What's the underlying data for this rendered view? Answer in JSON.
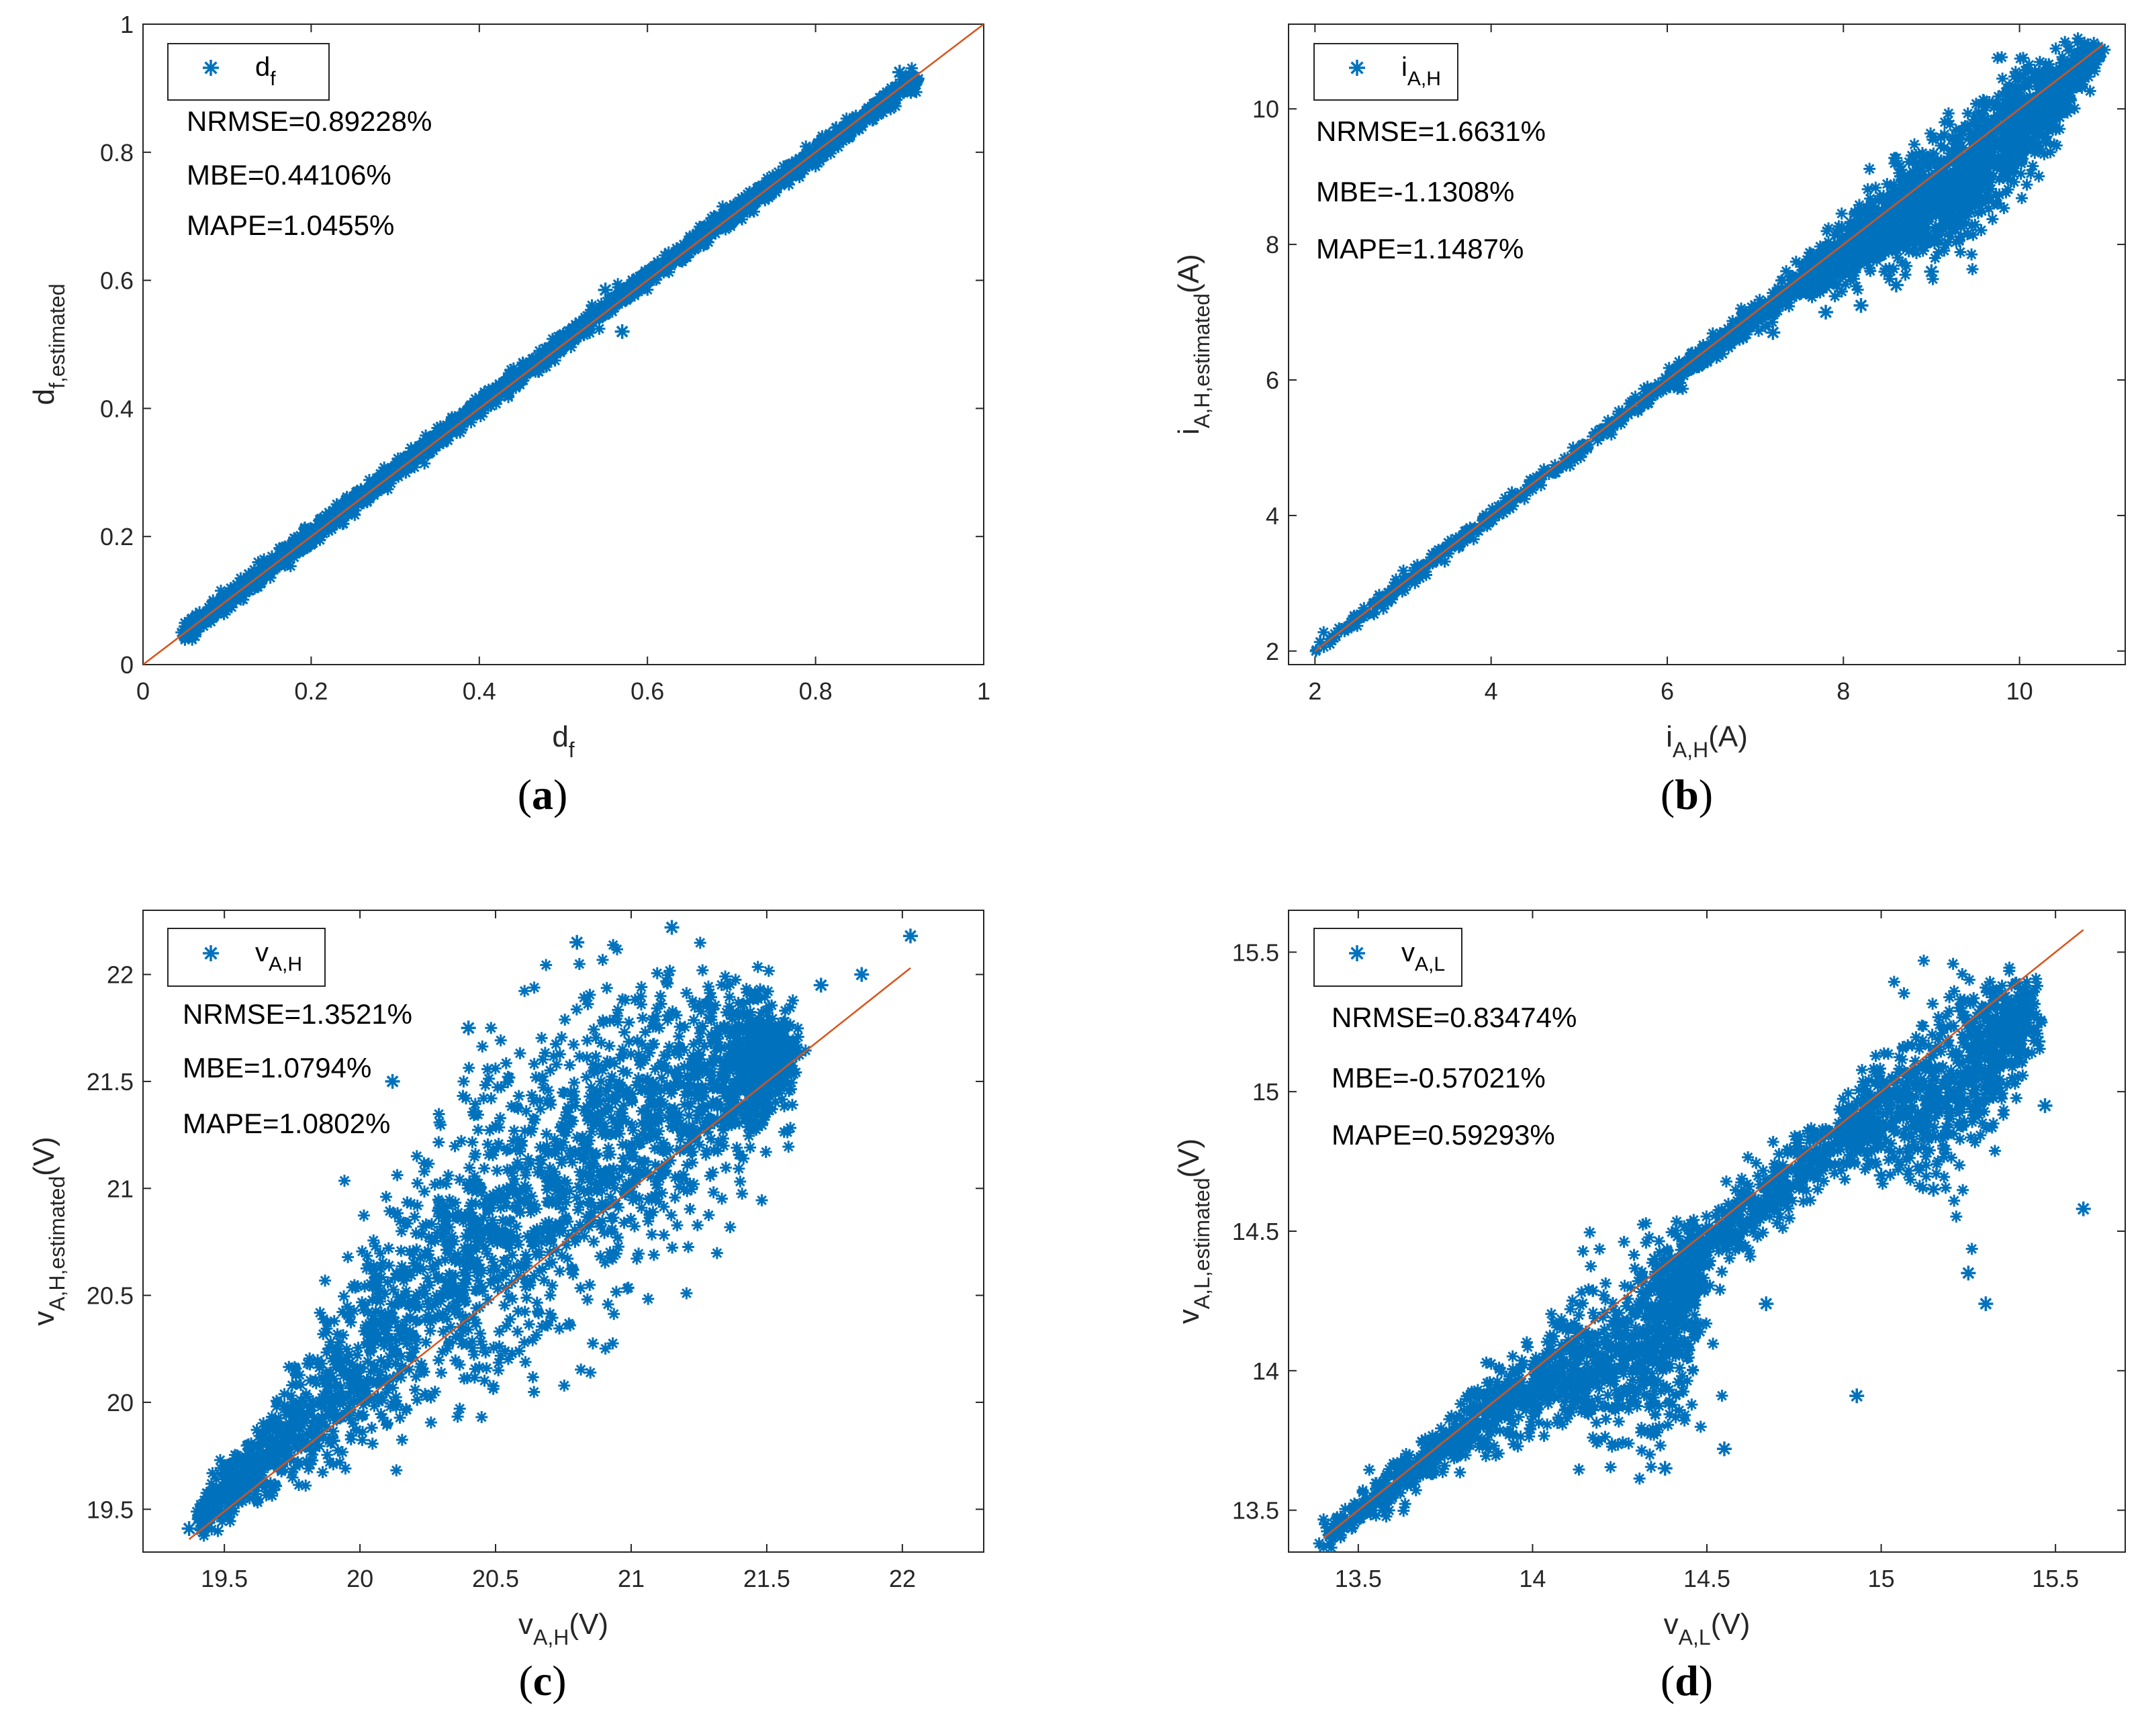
{
  "figure": {
    "accent_series_color": "#0072BD",
    "reference_line_color": "#D95319",
    "marker_glyph": "asterisk"
  },
  "chart_data": [
    {
      "type": "scatter",
      "id": "a",
      "panel_label": "a",
      "legend_label": {
        "main": "d",
        "sub": "f"
      },
      "xlabel": {
        "main": "d",
        "sub": "f",
        "suffix": ""
      },
      "ylabel": {
        "main": "d",
        "sub": "f,estimated",
        "suffix": ""
      },
      "xlim": [
        0,
        1
      ],
      "ylim": [
        0,
        1
      ],
      "xticks": [
        0,
        0.2,
        0.4,
        0.6,
        0.8,
        1
      ],
      "xtick_labels": [
        "0",
        "0.2",
        "0.4",
        "0.6",
        "0.8",
        "1"
      ],
      "yticks": [
        0,
        0.2,
        0.4,
        0.6,
        0.8,
        1
      ],
      "ytick_labels": [
        "0",
        "0.2",
        "0.4",
        "0.6",
        "0.8",
        "1"
      ],
      "stats": {
        "nrmse": "NRMSE=0.89228%",
        "mbe": "MBE=0.44106%",
        "mape": "MAPE=1.0455%"
      },
      "reference_line": {
        "x": [
          0,
          1
        ],
        "y": [
          0,
          1
        ]
      },
      "scatter_band": [
        {
          "x": 0.05,
          "y": 0.05,
          "spread": 0.008
        },
        {
          "x": 0.3,
          "y": 0.303,
          "spread": 0.007
        },
        {
          "x": 0.6,
          "y": 0.605,
          "spread": 0.007
        },
        {
          "x": 0.92,
          "y": 0.915,
          "spread": 0.008
        }
      ],
      "outliers": [
        [
          0.57,
          0.52
        ],
        [
          0.7,
          0.71
        ],
        [
          0.55,
          0.585
        ],
        [
          0.9,
          0.925
        ]
      ]
    },
    {
      "type": "scatter",
      "id": "b",
      "panel_label": "b",
      "legend_label": {
        "main": "i",
        "sub": "A,H"
      },
      "xlabel": {
        "main": "i",
        "sub": "A,H",
        "suffix": "(A)"
      },
      "ylabel": {
        "main": "i",
        "sub": "A,H,estimated",
        "suffix": "(A)"
      },
      "xlim": [
        1.7,
        11.2
      ],
      "ylim": [
        1.8,
        11.25
      ],
      "xticks": [
        2,
        4,
        6,
        8,
        10
      ],
      "xtick_labels": [
        "2",
        "4",
        "6",
        "8",
        "10"
      ],
      "yticks": [
        2,
        4,
        6,
        8,
        10
      ],
      "ytick_labels": [
        "2",
        "4",
        "6",
        "8",
        "10"
      ],
      "stats": {
        "nrmse": "NRMSE=1.6631%",
        "mbe": "MBE=-1.1308%",
        "mape": "MAPE=1.1487%"
      },
      "reference_line": {
        "x": [
          2,
          10.95
        ],
        "y": [
          2,
          10.95
        ]
      },
      "scatter_band": [
        {
          "x": 2.0,
          "y": 2.0,
          "spread": 0.05
        },
        {
          "x": 6.0,
          "y": 5.97,
          "spread": 0.06
        },
        {
          "x": 7.5,
          "y": 7.4,
          "spread": 0.12
        },
        {
          "x": 8.5,
          "y": 8.3,
          "spread": 0.3
        },
        {
          "x": 9.3,
          "y": 8.9,
          "spread": 0.45
        },
        {
          "x": 10.0,
          "y": 9.8,
          "spread": 0.4
        },
        {
          "x": 10.9,
          "y": 10.85,
          "spread": 0.08
        }
      ],
      "outliers": [
        [
          8.2,
          7.1
        ],
        [
          8.6,
          7.4
        ],
        [
          9.0,
          7.6
        ],
        [
          8.9,
          9.3
        ],
        [
          9.5,
          8.6
        ],
        [
          10.3,
          9.5
        ],
        [
          7.8,
          7.0
        ],
        [
          7.2,
          6.7
        ]
      ]
    },
    {
      "type": "scatter",
      "id": "c",
      "panel_label": "c",
      "legend_label": {
        "main": "v",
        "sub": "A,H"
      },
      "xlabel": {
        "main": "v",
        "sub": "A,H",
        "suffix": "(V)"
      },
      "ylabel": {
        "main": "v",
        "sub": "A,H,estimated",
        "suffix": "(V)"
      },
      "xlim": [
        19.2,
        22.3
      ],
      "ylim": [
        19.3,
        22.3
      ],
      "xticks": [
        19.5,
        20,
        20.5,
        21,
        21.5,
        22
      ],
      "xtick_labels": [
        "19.5",
        "20",
        "20.5",
        "21",
        "21.5",
        "22"
      ],
      "yticks": [
        19.5,
        20,
        20.5,
        21,
        21.5,
        22
      ],
      "ytick_labels": [
        "19.5",
        "20",
        "20.5",
        "21",
        "21.5",
        "22"
      ],
      "stats": {
        "nrmse": "NRMSE=1.3521%",
        "mbe": "MBE=1.0794%",
        "mape": "MAPE=1.0802%"
      },
      "reference_line": {
        "x": [
          19.37,
          22.03
        ],
        "y": [
          19.36,
          22.03
        ]
      },
      "scatter_band": [
        {
          "x": 19.4,
          "y": 19.45,
          "spread": 0.04
        },
        {
          "x": 19.8,
          "y": 19.9,
          "spread": 0.12
        },
        {
          "x": 20.2,
          "y": 20.45,
          "spread": 0.28
        },
        {
          "x": 20.6,
          "y": 20.95,
          "spread": 0.38
        },
        {
          "x": 21.0,
          "y": 21.3,
          "spread": 0.35
        },
        {
          "x": 21.4,
          "y": 21.55,
          "spread": 0.2
        },
        {
          "x": 21.55,
          "y": 21.6,
          "spread": 0.1
        }
      ],
      "outliers": [
        [
          19.37,
          19.41
        ],
        [
          22.03,
          22.18
        ],
        [
          21.85,
          22.0
        ],
        [
          20.8,
          22.15
        ],
        [
          21.15,
          22.22
        ],
        [
          20.4,
          21.75
        ],
        [
          19.6,
          19.78
        ],
        [
          21.7,
          21.95
        ],
        [
          20.12,
          21.5
        ],
        [
          19.9,
          19.82
        ]
      ]
    },
    {
      "type": "scatter",
      "id": "d",
      "panel_label": "d",
      "legend_label": {
        "main": "v",
        "sub": "A,L"
      },
      "xlabel": {
        "main": "v",
        "sub": "A,L",
        "suffix": "(V)"
      },
      "ylabel": {
        "main": "v",
        "sub": "A,L,estimated",
        "suffix": "(V)"
      },
      "xlim": [
        13.3,
        15.7
      ],
      "ylim": [
        13.35,
        15.65
      ],
      "xticks": [
        13.5,
        14,
        14.5,
        15,
        15.5
      ],
      "xtick_labels": [
        "13.5",
        "14",
        "14.5",
        "15",
        "15.5"
      ],
      "yticks": [
        13.5,
        14,
        14.5,
        15,
        15.5
      ],
      "ytick_labels": [
        "13.5",
        "14",
        "14.5",
        "15",
        "15.5"
      ],
      "stats": {
        "nrmse": "NRMSE=0.83474%",
        "mbe": "MBE=-0.57021%",
        "mape": "MAPE=0.59293%"
      },
      "reference_line": {
        "x": [
          13.4,
          15.58
        ],
        "y": [
          13.4,
          15.58
        ]
      },
      "scatter_band": [
        {
          "x": 13.4,
          "y": 13.4,
          "spread": 0.02
        },
        {
          "x": 13.8,
          "y": 13.78,
          "spread": 0.05
        },
        {
          "x": 14.1,
          "y": 14.02,
          "spread": 0.1
        },
        {
          "x": 14.35,
          "y": 14.05,
          "spread": 0.2
        },
        {
          "x": 14.45,
          "y": 14.4,
          "spread": 0.06
        },
        {
          "x": 14.9,
          "y": 14.85,
          "spread": 0.06
        },
        {
          "x": 15.2,
          "y": 15.0,
          "spread": 0.18
        },
        {
          "x": 15.42,
          "y": 15.3,
          "spread": 0.06
        }
      ],
      "outliers": [
        [
          15.58,
          14.58
        ],
        [
          15.47,
          14.95
        ],
        [
          15.3,
          14.24
        ],
        [
          15.25,
          14.35
        ],
        [
          14.93,
          13.91
        ],
        [
          14.67,
          14.24
        ],
        [
          14.55,
          13.72
        ],
        [
          14.38,
          13.65
        ],
        [
          15.45,
          15.18
        ],
        [
          14.35,
          14.4
        ],
        [
          15.0,
          14.7
        ],
        [
          15.15,
          14.65
        ]
      ]
    }
  ]
}
